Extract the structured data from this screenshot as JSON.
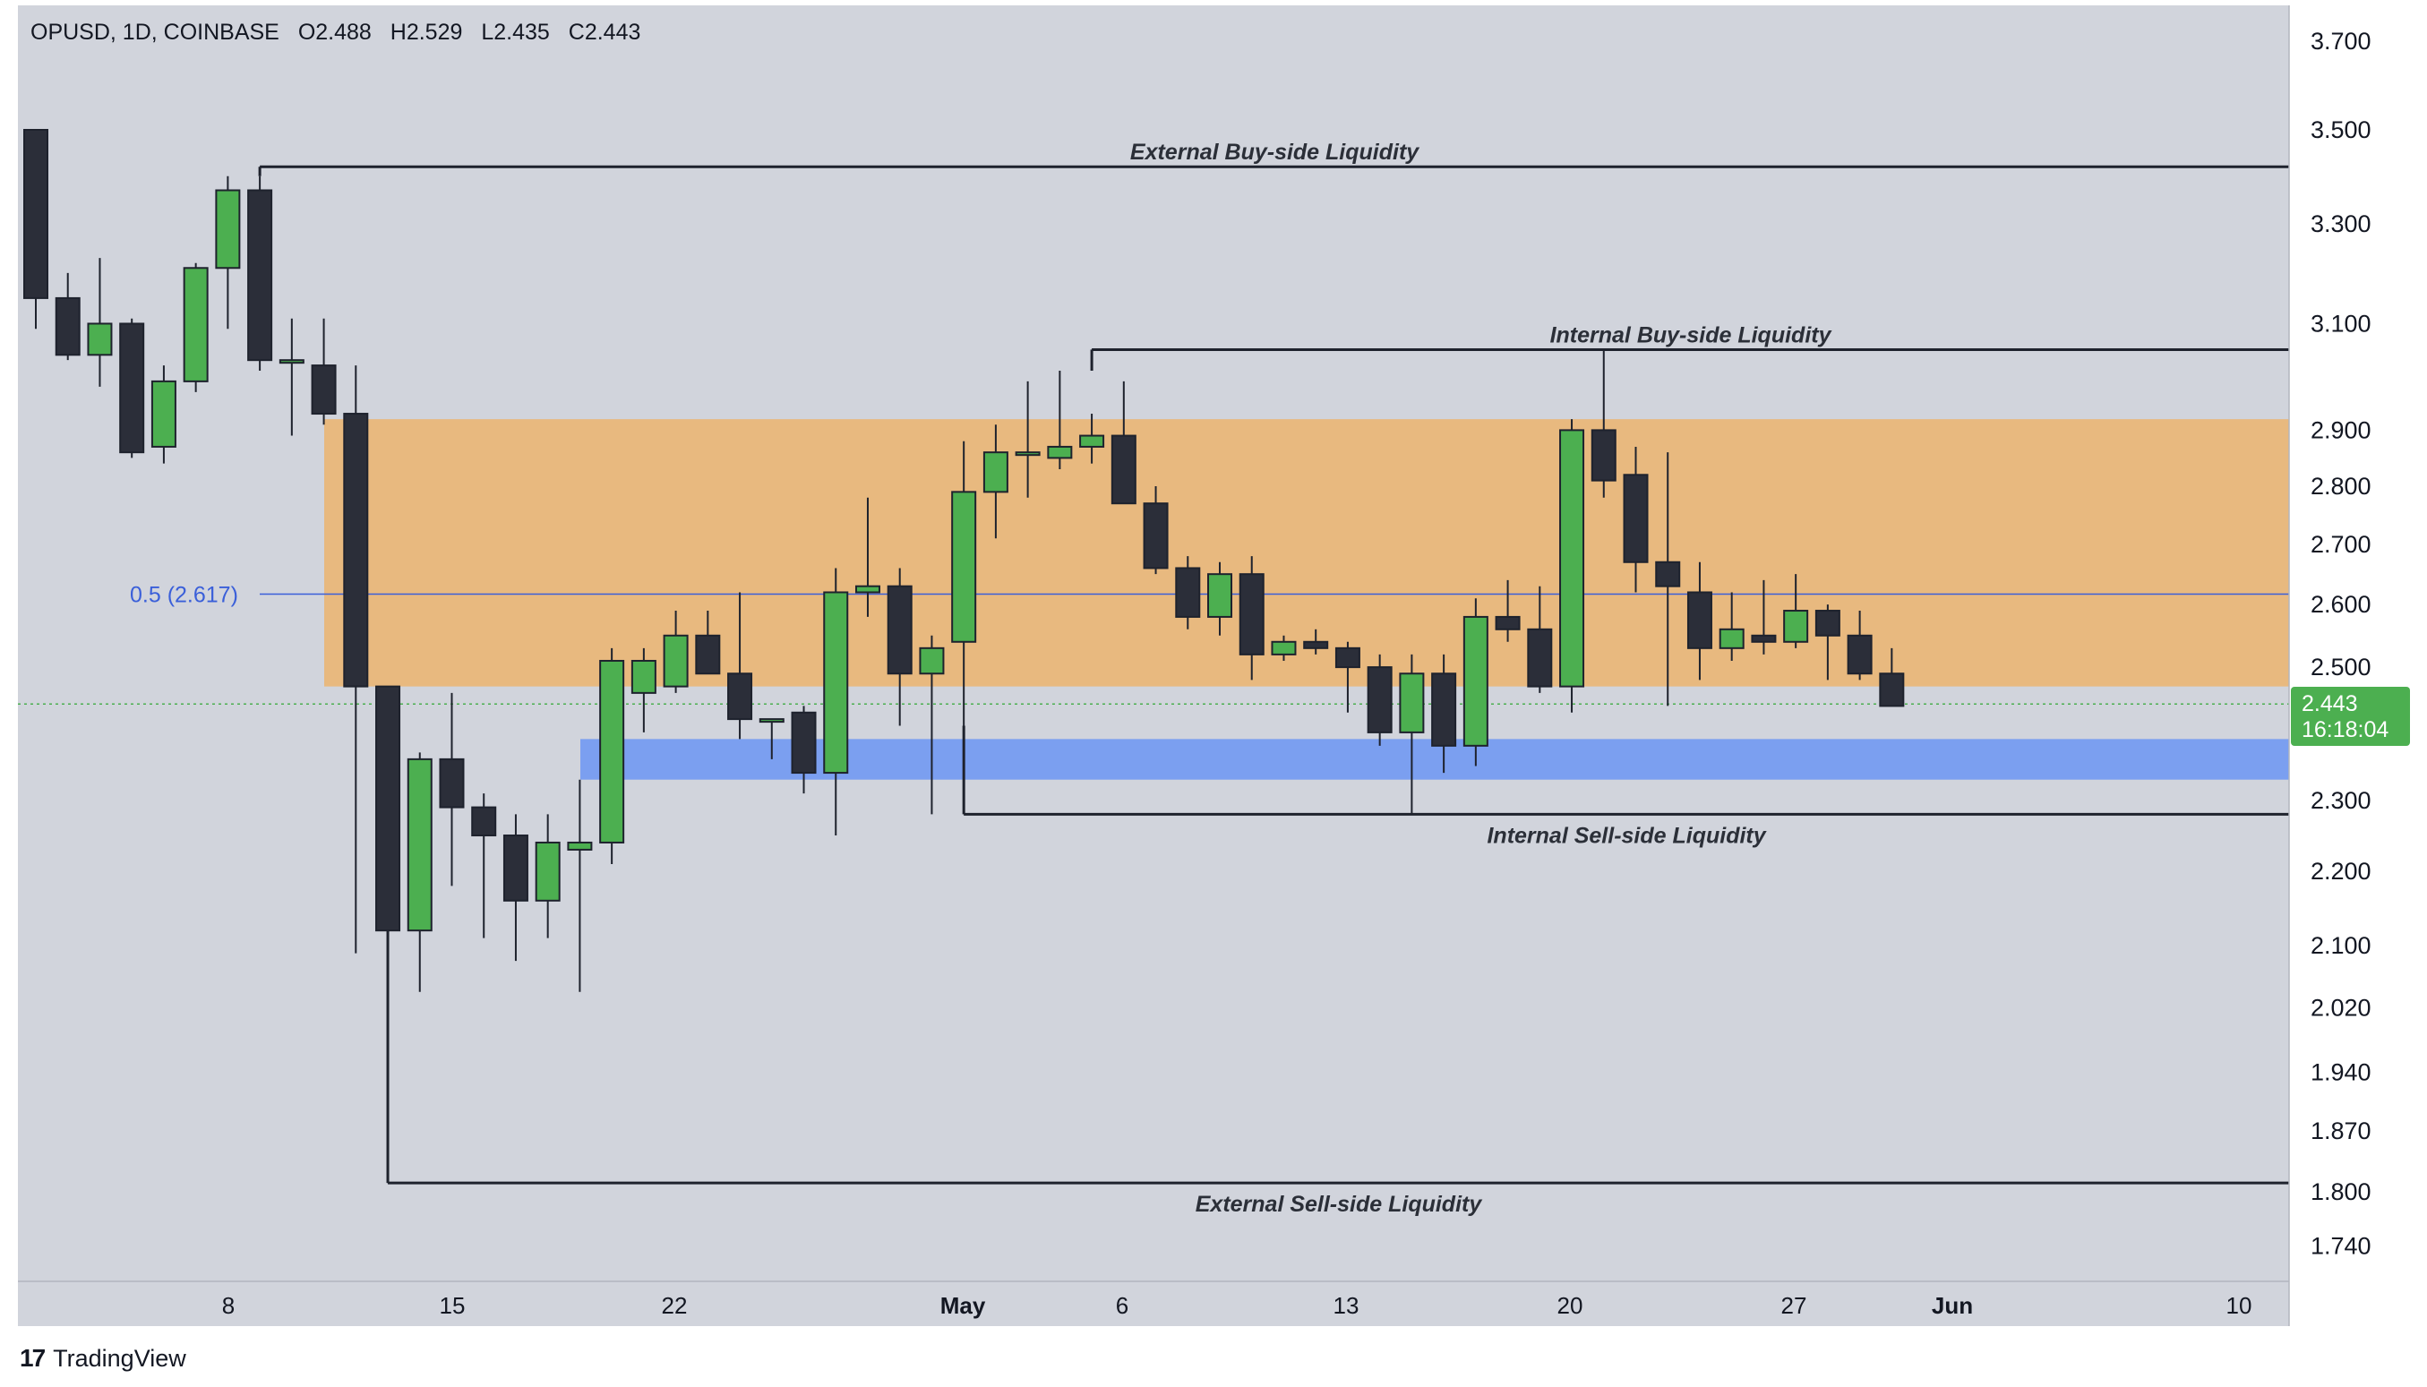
{
  "header": {
    "symbol": "OPUSD, 1D, COINBASE",
    "open": "O2.488",
    "high": "H2.529",
    "low": "L2.435",
    "close": "C2.443"
  },
  "price_label": {
    "value": "2.443",
    "countdown": "16:18:04"
  },
  "fib_label": "0.5 (2.617)",
  "annotations": {
    "ext_buy": "External Buy-side Liquidity",
    "int_buy": "Internal Buy-side Liquidity",
    "int_sell": "Internal Sell-side Liquidity",
    "ext_sell": "External Sell-side Liquidity"
  },
  "brand": {
    "logo": "17",
    "name": "TradingView"
  },
  "colors": {
    "background": "#d1d4dc",
    "up_candle": "#4caf50",
    "down_candle": "#2b2e39",
    "premium_zone": "#e8b97f",
    "fvg_zone": "#7b9ff0",
    "fib_line": "#3a5fd9",
    "price_line": "#4caf50"
  },
  "chart_data": {
    "type": "candlestick",
    "symbol": "OPUSD",
    "interval": "1D",
    "exchange": "COINBASE",
    "y_axis": {
      "scale": "log",
      "range": [
        1.7,
        3.8
      ],
      "ticks": [
        "3.700",
        "3.500",
        "3.300",
        "3.100",
        "2.900",
        "2.800",
        "2.700",
        "2.600",
        "2.500",
        "2.300",
        "2.200",
        "2.100",
        "2.020",
        "1.940",
        "1.870",
        "1.800",
        "1.740"
      ]
    },
    "x_axis": {
      "ticks": [
        "8",
        "15",
        "22",
        "May",
        "6",
        "13",
        "20",
        "27",
        "Jun",
        "10"
      ]
    },
    "candles": [
      {
        "date": "Apr 1",
        "o": 3.5,
        "h": 3.5,
        "l": 3.09,
        "c": 3.15
      },
      {
        "date": "Apr 2",
        "o": 3.15,
        "h": 3.2,
        "l": 3.03,
        "c": 3.04
      },
      {
        "date": "Apr 3",
        "o": 3.04,
        "h": 3.23,
        "l": 2.98,
        "c": 3.1
      },
      {
        "date": "Apr 4",
        "o": 3.1,
        "h": 3.11,
        "l": 2.85,
        "c": 2.86
      },
      {
        "date": "Apr 5",
        "o": 2.87,
        "h": 3.02,
        "l": 2.84,
        "c": 2.99
      },
      {
        "date": "Apr 6",
        "o": 2.99,
        "h": 3.22,
        "l": 2.97,
        "c": 3.21
      },
      {
        "date": "Apr 7",
        "o": 3.21,
        "h": 3.4,
        "l": 3.09,
        "c": 3.37
      },
      {
        "date": "Apr 8",
        "o": 3.37,
        "h": 3.4,
        "l": 3.01,
        "c": 3.03
      },
      {
        "date": "Apr 9",
        "o": 3.03,
        "h": 3.11,
        "l": 2.89,
        "c": 3.03
      },
      {
        "date": "Apr 10",
        "o": 3.02,
        "h": 3.11,
        "l": 2.91,
        "c": 2.93
      },
      {
        "date": "Apr 11",
        "o": 2.93,
        "h": 3.02,
        "l": 2.09,
        "c": 2.47
      },
      {
        "date": "Apr 12",
        "o": 2.47,
        "h": 2.47,
        "l": 1.81,
        "c": 2.12
      },
      {
        "date": "Apr 13",
        "o": 2.12,
        "h": 2.37,
        "l": 2.04,
        "c": 2.36
      },
      {
        "date": "Apr 14",
        "o": 2.36,
        "h": 2.46,
        "l": 2.18,
        "c": 2.29
      },
      {
        "date": "Apr 15",
        "o": 2.29,
        "h": 2.31,
        "l": 2.11,
        "c": 2.25
      },
      {
        "date": "Apr 16",
        "o": 2.25,
        "h": 2.28,
        "l": 2.08,
        "c": 2.16
      },
      {
        "date": "Apr 17",
        "o": 2.16,
        "h": 2.28,
        "l": 2.11,
        "c": 2.24
      },
      {
        "date": "Apr 18",
        "o": 2.23,
        "h": 2.33,
        "l": 2.04,
        "c": 2.24
      },
      {
        "date": "Apr 19",
        "o": 2.24,
        "h": 2.53,
        "l": 2.21,
        "c": 2.51
      },
      {
        "date": "Apr 20",
        "o": 2.46,
        "h": 2.53,
        "l": 2.4,
        "c": 2.51
      },
      {
        "date": "Apr 21",
        "o": 2.47,
        "h": 2.59,
        "l": 2.46,
        "c": 2.55
      },
      {
        "date": "Apr 22",
        "o": 2.55,
        "h": 2.59,
        "l": 2.49,
        "c": 2.49
      },
      {
        "date": "Apr 23",
        "o": 2.49,
        "h": 2.62,
        "l": 2.39,
        "c": 2.42
      },
      {
        "date": "Apr 24",
        "o": 2.42,
        "h": 2.42,
        "l": 2.36,
        "c": 2.42
      },
      {
        "date": "Apr 25",
        "o": 2.43,
        "h": 2.44,
        "l": 2.31,
        "c": 2.34
      },
      {
        "date": "Apr 26",
        "o": 2.34,
        "h": 2.66,
        "l": 2.25,
        "c": 2.62
      },
      {
        "date": "Apr 27",
        "o": 2.62,
        "h": 2.78,
        "l": 2.58,
        "c": 2.63
      },
      {
        "date": "Apr 28",
        "o": 2.63,
        "h": 2.66,
        "l": 2.41,
        "c": 2.49
      },
      {
        "date": "Apr 29",
        "o": 2.49,
        "h": 2.55,
        "l": 2.28,
        "c": 2.53
      },
      {
        "date": "Apr 30",
        "o": 2.54,
        "h": 2.88,
        "l": 2.41,
        "c": 2.79
      },
      {
        "date": "May 1",
        "o": 2.79,
        "h": 2.91,
        "l": 2.71,
        "c": 2.86
      },
      {
        "date": "May 2",
        "o": 2.86,
        "h": 2.99,
        "l": 2.78,
        "c": 2.86
      },
      {
        "date": "May 3",
        "o": 2.85,
        "h": 3.01,
        "l": 2.83,
        "c": 2.87
      },
      {
        "date": "May 4",
        "o": 2.87,
        "h": 2.93,
        "l": 2.84,
        "c": 2.89
      },
      {
        "date": "May 5",
        "o": 2.89,
        "h": 2.99,
        "l": 2.77,
        "c": 2.77
      },
      {
        "date": "May 6",
        "o": 2.77,
        "h": 2.8,
        "l": 2.65,
        "c": 2.66
      },
      {
        "date": "May 7",
        "o": 2.66,
        "h": 2.68,
        "l": 2.56,
        "c": 2.58
      },
      {
        "date": "May 8",
        "o": 2.58,
        "h": 2.67,
        "l": 2.55,
        "c": 2.65
      },
      {
        "date": "May 9",
        "o": 2.65,
        "h": 2.68,
        "l": 2.48,
        "c": 2.52
      },
      {
        "date": "May 10",
        "o": 2.52,
        "h": 2.55,
        "l": 2.51,
        "c": 2.54
      },
      {
        "date": "May 11",
        "o": 2.54,
        "h": 2.56,
        "l": 2.52,
        "c": 2.53
      },
      {
        "date": "May 12",
        "o": 2.53,
        "h": 2.54,
        "l": 2.43,
        "c": 2.5
      },
      {
        "date": "May 13",
        "o": 2.5,
        "h": 2.52,
        "l": 2.38,
        "c": 2.4
      },
      {
        "date": "May 14",
        "o": 2.4,
        "h": 2.52,
        "l": 2.28,
        "c": 2.49
      },
      {
        "date": "May 15",
        "o": 2.49,
        "h": 2.52,
        "l": 2.34,
        "c": 2.38
      },
      {
        "date": "May 16",
        "o": 2.38,
        "h": 2.61,
        "l": 2.35,
        "c": 2.58
      },
      {
        "date": "May 17",
        "o": 2.58,
        "h": 2.64,
        "l": 2.54,
        "c": 2.56
      },
      {
        "date": "May 18",
        "o": 2.56,
        "h": 2.63,
        "l": 2.46,
        "c": 2.47
      },
      {
        "date": "May 19",
        "o": 2.47,
        "h": 2.92,
        "l": 2.43,
        "c": 2.9
      },
      {
        "date": "May 20",
        "o": 2.9,
        "h": 3.05,
        "l": 2.78,
        "c": 2.81
      },
      {
        "date": "May 21",
        "o": 2.82,
        "h": 2.87,
        "l": 2.62,
        "c": 2.67
      },
      {
        "date": "May 22",
        "o": 2.67,
        "h": 2.86,
        "l": 2.44,
        "c": 2.63
      },
      {
        "date": "May 23",
        "o": 2.62,
        "h": 2.67,
        "l": 2.48,
        "c": 2.53
      },
      {
        "date": "May 24",
        "o": 2.53,
        "h": 2.62,
        "l": 2.51,
        "c": 2.56
      },
      {
        "date": "May 25",
        "o": 2.55,
        "h": 2.64,
        "l": 2.52,
        "c": 2.54
      },
      {
        "date": "May 26",
        "o": 2.54,
        "h": 2.65,
        "l": 2.53,
        "c": 2.59
      },
      {
        "date": "May 27",
        "o": 2.59,
        "h": 2.6,
        "l": 2.48,
        "c": 2.55
      },
      {
        "date": "May 28",
        "o": 2.55,
        "h": 2.59,
        "l": 2.48,
        "c": 2.49
      },
      {
        "date": "May 29",
        "o": 2.49,
        "h": 2.53,
        "l": 2.44,
        "c": 2.44
      }
    ],
    "zones": [
      {
        "name": "premium-zone",
        "top": 2.92,
        "bottom": 2.47,
        "color": "#e8b97f"
      },
      {
        "name": "fvg-zone",
        "top": 2.39,
        "bottom": 2.33,
        "color": "#7b9ff0"
      }
    ],
    "levels": [
      {
        "name": "external-buy-side",
        "price": 3.42,
        "from_index": 7,
        "label_key": "ext_buy"
      },
      {
        "name": "internal-buy-side",
        "price": 3.05,
        "from_index": 33,
        "label_key": "int_buy"
      },
      {
        "name": "internal-sell-side",
        "price": 2.28,
        "from_index": 29,
        "label_key": "int_sell"
      },
      {
        "name": "external-sell-side",
        "price": 1.81,
        "from_index": 11,
        "label_key": "ext_sell"
      }
    ],
    "fib_level": {
      "label": "0.5 (2.617)",
      "price": 2.617
    },
    "last_price": 2.443
  }
}
